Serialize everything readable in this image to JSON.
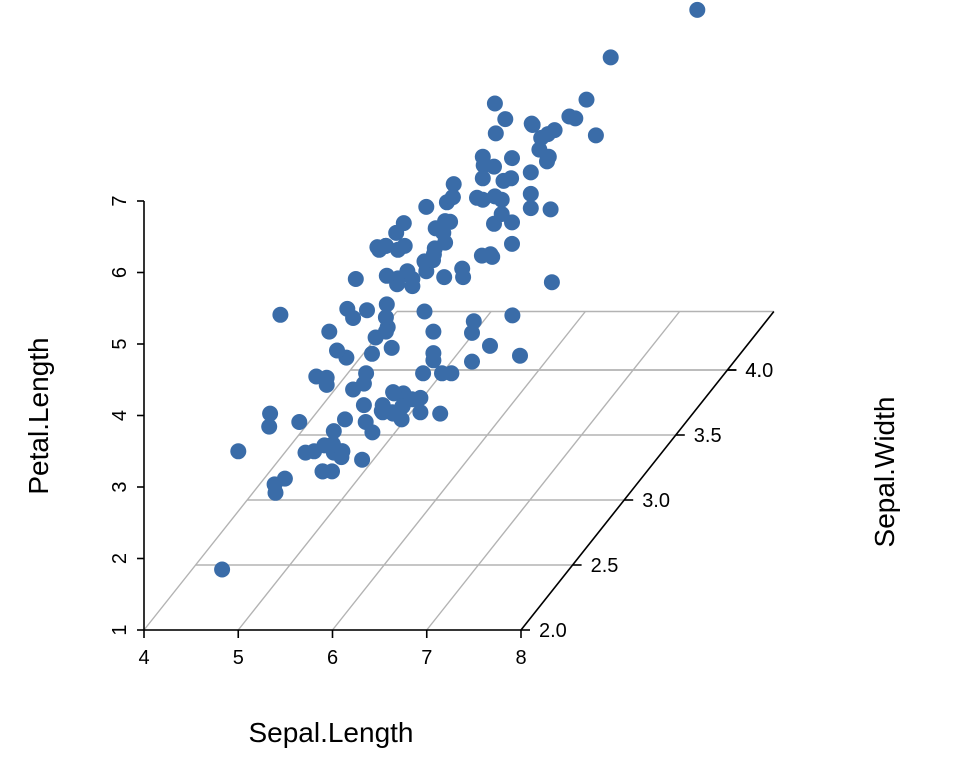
{
  "chart_data": {
    "type": "scatter",
    "subtype": "3d",
    "xlabel": "Sepal.Length",
    "ylabel": "Sepal.Width",
    "zlabel": "Petal.Length",
    "xlim": [
      4,
      8
    ],
    "ylim": [
      2.0,
      4.45
    ],
    "zlim": [
      1,
      7
    ],
    "x_ticks": [
      "4",
      "5",
      "6",
      "7",
      "8"
    ],
    "y_ticks": [
      "2.0",
      "2.5",
      "3.0",
      "3.5",
      "4.0",
      "4."
    ],
    "z_ticks": [
      "1",
      "2",
      "3",
      "4",
      "5",
      "6",
      "7"
    ],
    "grid": true,
    "point_color": "#3a6ca8",
    "points": [
      {
        "x": 5.1,
        "y": 3.5,
        "z": 1.4
      },
      {
        "x": 4.9,
        "y": 3.0,
        "z": 1.4
      },
      {
        "x": 4.7,
        "y": 3.2,
        "z": 1.3
      },
      {
        "x": 4.6,
        "y": 3.1,
        "z": 1.5
      },
      {
        "x": 5.0,
        "y": 3.6,
        "z": 1.4
      },
      {
        "x": 5.4,
        "y": 3.9,
        "z": 1.7
      },
      {
        "x": 4.6,
        "y": 3.4,
        "z": 1.4
      },
      {
        "x": 5.0,
        "y": 3.4,
        "z": 1.5
      },
      {
        "x": 4.4,
        "y": 2.9,
        "z": 1.4
      },
      {
        "x": 4.9,
        "y": 3.1,
        "z": 1.5
      },
      {
        "x": 5.4,
        "y": 3.7,
        "z": 1.5
      },
      {
        "x": 4.8,
        "y": 3.4,
        "z": 1.6
      },
      {
        "x": 4.8,
        "y": 3.0,
        "z": 1.4
      },
      {
        "x": 4.3,
        "y": 3.0,
        "z": 1.1
      },
      {
        "x": 5.8,
        "y": 4.0,
        "z": 1.2
      },
      {
        "x": 5.7,
        "y": 4.4,
        "z": 1.5
      },
      {
        "x": 5.4,
        "y": 3.9,
        "z": 1.3
      },
      {
        "x": 5.1,
        "y": 3.5,
        "z": 1.4
      },
      {
        "x": 5.7,
        "y": 3.8,
        "z": 1.7
      },
      {
        "x": 5.1,
        "y": 3.8,
        "z": 1.5
      },
      {
        "x": 5.4,
        "y": 3.4,
        "z": 1.7
      },
      {
        "x": 5.1,
        "y": 3.7,
        "z": 1.5
      },
      {
        "x": 4.6,
        "y": 3.6,
        "z": 1.0
      },
      {
        "x": 5.1,
        "y": 3.3,
        "z": 1.7
      },
      {
        "x": 4.8,
        "y": 3.4,
        "z": 1.9
      },
      {
        "x": 5.0,
        "y": 3.0,
        "z": 1.6
      },
      {
        "x": 5.0,
        "y": 3.4,
        "z": 1.6
      },
      {
        "x": 5.2,
        "y": 3.5,
        "z": 1.5
      },
      {
        "x": 5.2,
        "y": 3.4,
        "z": 1.4
      },
      {
        "x": 4.7,
        "y": 3.2,
        "z": 1.6
      },
      {
        "x": 4.8,
        "y": 3.1,
        "z": 1.6
      },
      {
        "x": 5.4,
        "y": 3.4,
        "z": 1.5
      },
      {
        "x": 5.2,
        "y": 4.1,
        "z": 1.5
      },
      {
        "x": 5.5,
        "y": 4.2,
        "z": 1.4
      },
      {
        "x": 4.9,
        "y": 3.1,
        "z": 1.5
      },
      {
        "x": 5.0,
        "y": 3.2,
        "z": 1.2
      },
      {
        "x": 5.5,
        "y": 3.5,
        "z": 1.3
      },
      {
        "x": 4.9,
        "y": 3.6,
        "z": 1.4
      },
      {
        "x": 4.4,
        "y": 3.0,
        "z": 1.3
      },
      {
        "x": 5.1,
        "y": 3.4,
        "z": 1.5
      },
      {
        "x": 5.0,
        "y": 3.5,
        "z": 1.3
      },
      {
        "x": 4.5,
        "y": 2.3,
        "z": 1.3
      },
      {
        "x": 4.4,
        "y": 3.2,
        "z": 1.3
      },
      {
        "x": 5.0,
        "y": 3.5,
        "z": 1.6
      },
      {
        "x": 5.1,
        "y": 3.8,
        "z": 1.9
      },
      {
        "x": 4.8,
        "y": 3.0,
        "z": 1.4
      },
      {
        "x": 5.1,
        "y": 3.8,
        "z": 1.6
      },
      {
        "x": 4.6,
        "y": 3.2,
        "z": 1.4
      },
      {
        "x": 5.3,
        "y": 3.7,
        "z": 1.5
      },
      {
        "x": 5.0,
        "y": 3.3,
        "z": 1.4
      },
      {
        "x": 7.0,
        "y": 3.2,
        "z": 4.7
      },
      {
        "x": 6.4,
        "y": 3.2,
        "z": 4.5
      },
      {
        "x": 6.9,
        "y": 3.1,
        "z": 4.9
      },
      {
        "x": 5.5,
        "y": 2.3,
        "z": 4.0
      },
      {
        "x": 6.5,
        "y": 2.8,
        "z": 4.6
      },
      {
        "x": 5.7,
        "y": 2.8,
        "z": 4.5
      },
      {
        "x": 6.3,
        "y": 3.3,
        "z": 4.7
      },
      {
        "x": 4.9,
        "y": 2.4,
        "z": 3.3
      },
      {
        "x": 6.6,
        "y": 2.9,
        "z": 4.6
      },
      {
        "x": 5.2,
        "y": 2.7,
        "z": 3.9
      },
      {
        "x": 5.0,
        "y": 2.0,
        "z": 3.5
      },
      {
        "x": 5.9,
        "y": 3.0,
        "z": 4.2
      },
      {
        "x": 6.0,
        "y": 2.2,
        "z": 4.0
      },
      {
        "x": 6.1,
        "y": 2.9,
        "z": 4.7
      },
      {
        "x": 5.6,
        "y": 2.9,
        "z": 3.6
      },
      {
        "x": 6.7,
        "y": 3.1,
        "z": 4.4
      },
      {
        "x": 5.6,
        "y": 3.0,
        "z": 4.5
      },
      {
        "x": 5.8,
        "y": 2.7,
        "z": 4.1
      },
      {
        "x": 6.2,
        "y": 2.2,
        "z": 4.5
      },
      {
        "x": 5.6,
        "y": 2.5,
        "z": 3.9
      },
      {
        "x": 5.9,
        "y": 3.2,
        "z": 4.8
      },
      {
        "x": 6.1,
        "y": 2.8,
        "z": 4.0
      },
      {
        "x": 6.3,
        "y": 2.5,
        "z": 4.9
      },
      {
        "x": 6.1,
        "y": 2.8,
        "z": 4.7
      },
      {
        "x": 6.4,
        "y": 2.9,
        "z": 4.3
      },
      {
        "x": 6.6,
        "y": 3.0,
        "z": 4.4
      },
      {
        "x": 6.8,
        "y": 2.8,
        "z": 4.8
      },
      {
        "x": 6.7,
        "y": 3.0,
        "z": 5.0
      },
      {
        "x": 6.0,
        "y": 2.9,
        "z": 4.5
      },
      {
        "x": 5.7,
        "y": 2.6,
        "z": 3.5
      },
      {
        "x": 5.5,
        "y": 2.4,
        "z": 3.8
      },
      {
        "x": 5.5,
        "y": 2.4,
        "z": 3.7
      },
      {
        "x": 5.8,
        "y": 2.7,
        "z": 3.9
      },
      {
        "x": 6.0,
        "y": 2.7,
        "z": 5.1
      },
      {
        "x": 5.4,
        "y": 3.0,
        "z": 4.5
      },
      {
        "x": 6.0,
        "y": 3.4,
        "z": 4.5
      },
      {
        "x": 6.7,
        "y": 3.1,
        "z": 4.7
      },
      {
        "x": 6.3,
        "y": 2.3,
        "z": 4.4
      },
      {
        "x": 5.6,
        "y": 3.0,
        "z": 4.1
      },
      {
        "x": 5.5,
        "y": 2.5,
        "z": 4.0
      },
      {
        "x": 5.5,
        "y": 2.6,
        "z": 4.4
      },
      {
        "x": 6.1,
        "y": 3.0,
        "z": 4.6
      },
      {
        "x": 5.8,
        "y": 2.6,
        "z": 4.0
      },
      {
        "x": 5.0,
        "y": 2.3,
        "z": 3.3
      },
      {
        "x": 5.6,
        "y": 2.7,
        "z": 4.2
      },
      {
        "x": 5.7,
        "y": 3.0,
        "z": 4.2
      },
      {
        "x": 5.7,
        "y": 2.9,
        "z": 4.2
      },
      {
        "x": 6.2,
        "y": 2.9,
        "z": 4.3
      },
      {
        "x": 5.1,
        "y": 2.5,
        "z": 3.0
      },
      {
        "x": 5.7,
        "y": 2.8,
        "z": 4.1
      },
      {
        "x": 6.3,
        "y": 3.3,
        "z": 6.0
      },
      {
        "x": 5.8,
        "y": 2.7,
        "z": 5.1
      },
      {
        "x": 7.1,
        "y": 3.0,
        "z": 5.9
      },
      {
        "x": 6.3,
        "y": 2.9,
        "z": 5.6
      },
      {
        "x": 6.5,
        "y": 3.0,
        "z": 5.8
      },
      {
        "x": 7.6,
        "y": 3.0,
        "z": 6.6
      },
      {
        "x": 4.9,
        "y": 2.5,
        "z": 4.5
      },
      {
        "x": 7.3,
        "y": 2.9,
        "z": 6.3
      },
      {
        "x": 6.7,
        "y": 2.5,
        "z": 5.8
      },
      {
        "x": 7.2,
        "y": 3.6,
        "z": 6.1
      },
      {
        "x": 6.5,
        "y": 3.2,
        "z": 5.1
      },
      {
        "x": 6.4,
        "y": 2.7,
        "z": 5.3
      },
      {
        "x": 6.8,
        "y": 3.0,
        "z": 5.5
      },
      {
        "x": 5.7,
        "y": 2.5,
        "z": 5.0
      },
      {
        "x": 5.8,
        "y": 2.8,
        "z": 5.1
      },
      {
        "x": 6.4,
        "y": 3.2,
        "z": 5.3
      },
      {
        "x": 6.5,
        "y": 3.0,
        "z": 5.5
      },
      {
        "x": 7.7,
        "y": 3.8,
        "z": 6.7
      },
      {
        "x": 7.7,
        "y": 2.6,
        "z": 6.9
      },
      {
        "x": 6.0,
        "y": 2.2,
        "z": 5.0
      },
      {
        "x": 6.9,
        "y": 3.2,
        "z": 5.7
      },
      {
        "x": 5.6,
        "y": 2.8,
        "z": 4.9
      },
      {
        "x": 7.7,
        "y": 2.8,
        "z": 6.7
      },
      {
        "x": 6.3,
        "y": 2.7,
        "z": 4.9
      },
      {
        "x": 6.7,
        "y": 3.3,
        "z": 5.7
      },
      {
        "x": 7.2,
        "y": 3.2,
        "z": 6.0
      },
      {
        "x": 6.2,
        "y": 2.8,
        "z": 4.8
      },
      {
        "x": 6.1,
        "y": 3.0,
        "z": 4.9
      },
      {
        "x": 6.4,
        "y": 2.8,
        "z": 5.6
      },
      {
        "x": 7.2,
        "y": 3.0,
        "z": 5.8
      },
      {
        "x": 7.4,
        "y": 2.8,
        "z": 6.1
      },
      {
        "x": 7.9,
        "y": 3.8,
        "z": 6.4
      },
      {
        "x": 6.4,
        "y": 2.8,
        "z": 5.6
      },
      {
        "x": 6.3,
        "y": 2.8,
        "z": 5.1
      },
      {
        "x": 6.1,
        "y": 2.6,
        "z": 5.6
      },
      {
        "x": 7.7,
        "y": 3.0,
        "z": 6.1
      },
      {
        "x": 6.3,
        "y": 3.4,
        "z": 5.6
      },
      {
        "x": 6.4,
        "y": 3.1,
        "z": 5.5
      },
      {
        "x": 6.0,
        "y": 3.0,
        "z": 4.8
      },
      {
        "x": 6.9,
        "y": 3.1,
        "z": 5.4
      },
      {
        "x": 6.7,
        "y": 3.1,
        "z": 5.6
      },
      {
        "x": 6.9,
        "y": 3.1,
        "z": 5.1
      },
      {
        "x": 5.8,
        "y": 2.7,
        "z": 5.1
      },
      {
        "x": 6.8,
        "y": 3.2,
        "z": 5.9
      },
      {
        "x": 6.7,
        "y": 3.3,
        "z": 5.7
      },
      {
        "x": 6.7,
        "y": 3.0,
        "z": 5.2
      },
      {
        "x": 6.3,
        "y": 2.5,
        "z": 5.0
      },
      {
        "x": 6.5,
        "y": 3.0,
        "z": 5.2
      },
      {
        "x": 6.2,
        "y": 3.4,
        "z": 5.4
      },
      {
        "x": 5.9,
        "y": 3.0,
        "z": 5.1
      }
    ]
  }
}
